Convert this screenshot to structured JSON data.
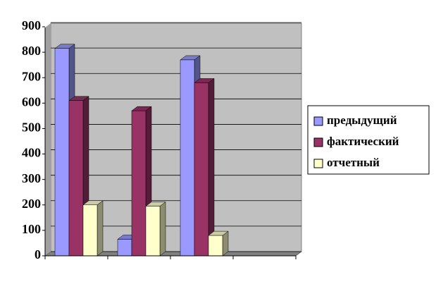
{
  "chart_data": {
    "type": "bar3d",
    "categories": [
      null,
      null,
      null,
      null
    ],
    "series": [
      {
        "name": "предыдущий",
        "color": "#9999ff",
        "values": [
          815,
          65,
          770,
          null
        ]
      },
      {
        "name": "фактический",
        "color": "#993366",
        "values": [
          610,
          570,
          680,
          null
        ]
      },
      {
        "name": "отчетный",
        "color": "#ffffcc",
        "values": [
          200,
          195,
          80,
          null
        ]
      }
    ],
    "ylim": [
      0,
      900
    ],
    "yticks": [
      0,
      100,
      200,
      300,
      400,
      500,
      600,
      700,
      800,
      900
    ],
    "grid": true,
    "legend": "right"
  }
}
